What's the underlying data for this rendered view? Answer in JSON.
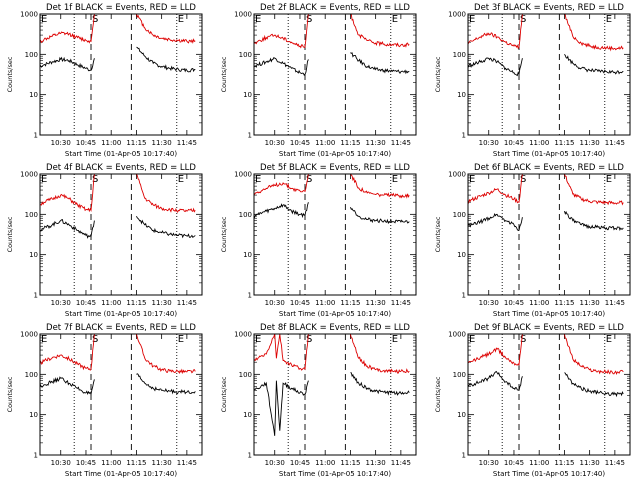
{
  "colors": {
    "events": "#000000",
    "lld": "#dd0000",
    "background": "#ffffff"
  },
  "chart_data": [
    {
      "type": "line",
      "title": "Det 1f BLACK = Events, RED = LLD",
      "xlabel": "Start Time (01-Apr-05 10:17:40)",
      "ylabel": "Counts/sec",
      "yscale": "log",
      "ylim": [
        1,
        1000
      ],
      "yticks": [
        "1",
        "10",
        "100",
        "1000"
      ],
      "xticks": [
        "10:30",
        "10:45",
        "11:00",
        "11:15",
        "11:30",
        "11:45"
      ],
      "markers": {
        "E": "E",
        "S": "S"
      },
      "x": [
        "10:17",
        "10:20",
        "10:25",
        "10:30",
        "10:35",
        "10:40",
        "10:45",
        "10:48",
        "10:50",
        "11:12",
        "11:15",
        "11:20",
        "11:25",
        "11:30",
        "11:35",
        "11:40",
        "11:45",
        "11:50"
      ],
      "series": [
        {
          "name": "Events",
          "values": [
            50,
            55,
            65,
            75,
            70,
            55,
            45,
            40,
            80,
            null,
            150,
            90,
            60,
            50,
            45,
            42,
            40,
            42
          ]
        },
        {
          "name": "LLD",
          "values": [
            200,
            230,
            280,
            330,
            320,
            260,
            220,
            210,
            1000,
            null,
            1000,
            450,
            300,
            250,
            230,
            220,
            210,
            215
          ]
        }
      ]
    },
    {
      "type": "line",
      "title": "Det 2f BLACK = Events, RED = LLD",
      "xlabel": "Start Time (01-Apr-05 10:17:40)",
      "ylabel": "Counts/sec",
      "yscale": "log",
      "ylim": [
        1,
        1000
      ],
      "yticks": [
        "1",
        "10",
        "100",
        "1000"
      ],
      "xticks": [
        "10:30",
        "10:45",
        "11:00",
        "11:15",
        "11:30",
        "11:45"
      ],
      "markers": {
        "E": "E",
        "S": "S"
      },
      "x": [
        "10:17",
        "10:20",
        "10:25",
        "10:30",
        "10:35",
        "10:40",
        "10:45",
        "10:48",
        "10:50",
        "11:12",
        "11:15",
        "11:20",
        "11:25",
        "11:30",
        "11:35",
        "11:40",
        "11:45",
        "11:50"
      ],
      "series": [
        {
          "name": "Events",
          "values": [
            50,
            55,
            65,
            80,
            60,
            45,
            35,
            32,
            75,
            null,
            110,
            70,
            50,
            42,
            40,
            38,
            37,
            38
          ]
        },
        {
          "name": "LLD",
          "values": [
            180,
            210,
            260,
            300,
            250,
            200,
            160,
            150,
            1000,
            null,
            1000,
            300,
            220,
            190,
            180,
            175,
            170,
            175
          ]
        }
      ]
    },
    {
      "type": "line",
      "title": "Det 3f BLACK = Events, RED = LLD",
      "xlabel": "Start Time (01-Apr-05 10:17:40)",
      "ylabel": "Counts/sec",
      "yscale": "log",
      "ylim": [
        1,
        1000
      ],
      "yticks": [
        "1",
        "10",
        "100",
        "1000"
      ],
      "xticks": [
        "10:30",
        "10:45",
        "11:00",
        "11:15",
        "11:30",
        "11:45"
      ],
      "markers": {
        "E": "E",
        "S": "S"
      },
      "x": [
        "10:17",
        "10:20",
        "10:25",
        "10:30",
        "10:35",
        "10:40",
        "10:45",
        "10:48",
        "10:50",
        "11:12",
        "11:15",
        "11:20",
        "11:25",
        "11:30",
        "11:35",
        "11:40",
        "11:45",
        "11:50"
      ],
      "series": [
        {
          "name": "Events",
          "values": [
            50,
            55,
            65,
            80,
            65,
            45,
            35,
            32,
            80,
            null,
            100,
            60,
            45,
            40,
            38,
            37,
            36,
            38
          ]
        },
        {
          "name": "LLD",
          "values": [
            180,
            210,
            270,
            330,
            270,
            200,
            160,
            150,
            1000,
            null,
            1000,
            280,
            190,
            160,
            150,
            145,
            140,
            145
          ]
        }
      ]
    },
    {
      "type": "line",
      "title": "Det 4f BLACK = Events, RED = LLD",
      "xlabel": "Start Time (01-Apr-05 10:17:40)",
      "ylabel": "Counts/sec",
      "yscale": "log",
      "ylim": [
        1,
        1000
      ],
      "yticks": [
        "1",
        "10",
        "100",
        "1000"
      ],
      "xticks": [
        "10:30",
        "10:45",
        "11:00",
        "11:15",
        "11:30",
        "11:45"
      ],
      "markers": {
        "E": "E",
        "S": "S"
      },
      "x": [
        "10:17",
        "10:20",
        "10:25",
        "10:30",
        "10:35",
        "10:40",
        "10:45",
        "10:48",
        "10:50",
        "11:12",
        "11:15",
        "11:20",
        "11:25",
        "11:30",
        "11:35",
        "11:40",
        "11:45",
        "11:50"
      ],
      "series": [
        {
          "name": "Events",
          "values": [
            40,
            45,
            55,
            70,
            55,
            40,
            30,
            28,
            70,
            null,
            90,
            55,
            40,
            35,
            32,
            30,
            29,
            30
          ]
        },
        {
          "name": "LLD",
          "values": [
            170,
            200,
            240,
            300,
            240,
            170,
            130,
            125,
            1000,
            null,
            1000,
            250,
            170,
            140,
            130,
            125,
            120,
            125
          ]
        }
      ]
    },
    {
      "type": "line",
      "title": "Det 5f BLACK = Events, RED = LLD",
      "xlabel": "Start Time (01-Apr-05 10:17:40)",
      "ylabel": "Counts/sec",
      "yscale": "log",
      "ylim": [
        1,
        1000
      ],
      "yticks": [
        "1",
        "10",
        "100",
        "1000"
      ],
      "xticks": [
        "10:30",
        "10:45",
        "11:00",
        "11:15",
        "11:30",
        "11:45"
      ],
      "markers": {
        "E": "E",
        "S": "S"
      },
      "x": [
        "10:17",
        "10:20",
        "10:25",
        "10:30",
        "10:35",
        "10:40",
        "10:45",
        "10:48",
        "10:50",
        "11:12",
        "11:15",
        "11:20",
        "11:25",
        "11:30",
        "11:35",
        "11:40",
        "11:45",
        "11:50"
      ],
      "series": [
        {
          "name": "Events",
          "values": [
            90,
            100,
            120,
            140,
            170,
            120,
            100,
            95,
            200,
            null,
            150,
            90,
            75,
            70,
            68,
            66,
            65,
            66
          ]
        },
        {
          "name": "LLD",
          "values": [
            320,
            360,
            440,
            520,
            600,
            440,
            380,
            370,
            1000,
            null,
            1000,
            450,
            340,
            310,
            300,
            295,
            290,
            295
          ]
        }
      ]
    },
    {
      "type": "line",
      "title": "Det 6f BLACK = Events, RED = LLD",
      "xlabel": "Start Time (01-Apr-05 10:17:40)",
      "ylabel": "Counts/sec",
      "yscale": "log",
      "ylim": [
        1,
        1000
      ],
      "yticks": [
        "1",
        "10",
        "100",
        "1000"
      ],
      "xticks": [
        "10:30",
        "10:45",
        "11:00",
        "11:15",
        "11:30",
        "11:45"
      ],
      "markers": {
        "E": "E",
        "S": "S"
      },
      "x": [
        "10:17",
        "10:20",
        "10:25",
        "10:30",
        "10:35",
        "10:40",
        "10:45",
        "10:48",
        "10:50",
        "11:12",
        "11:15",
        "11:20",
        "11:25",
        "11:30",
        "11:35",
        "11:40",
        "11:45",
        "11:50"
      ],
      "series": [
        {
          "name": "Events",
          "values": [
            50,
            55,
            65,
            80,
            100,
            70,
            55,
            40,
            85,
            null,
            120,
            70,
            55,
            50,
            48,
            46,
            45,
            46
          ]
        },
        {
          "name": "LLD",
          "values": [
            200,
            230,
            280,
            340,
            420,
            300,
            240,
            200,
            1000,
            null,
            1000,
            320,
            240,
            210,
            200,
            195,
            190,
            195
          ]
        }
      ]
    },
    {
      "type": "line",
      "title": "Det 7f BLACK = Events, RED = LLD",
      "xlabel": "Start Time (01-Apr-05 10:17:40)",
      "ylabel": "Counts/sec",
      "yscale": "log",
      "ylim": [
        1,
        1000
      ],
      "yticks": [
        "1",
        "10",
        "100",
        "1000"
      ],
      "xticks": [
        "10:30",
        "10:45",
        "11:00",
        "11:15",
        "11:30",
        "11:45"
      ],
      "markers": {
        "E": "E",
        "S": "S"
      },
      "x": [
        "10:17",
        "10:20",
        "10:25",
        "10:30",
        "10:35",
        "10:40",
        "10:45",
        "10:48",
        "10:50",
        "11:12",
        "11:15",
        "11:20",
        "11:25",
        "11:30",
        "11:35",
        "11:40",
        "11:45",
        "11:50"
      ],
      "series": [
        {
          "name": "Events",
          "values": [
            50,
            55,
            65,
            80,
            60,
            45,
            35,
            32,
            75,
            null,
            100,
            60,
            45,
            40,
            38,
            37,
            36,
            38
          ]
        },
        {
          "name": "LLD",
          "values": [
            180,
            210,
            260,
            300,
            240,
            180,
            140,
            135,
            1000,
            null,
            1000,
            250,
            160,
            130,
            120,
            118,
            115,
            118
          ]
        }
      ]
    },
    {
      "type": "line",
      "title": "Det 8f BLACK = Events, RED = LLD",
      "xlabel": "Start Time (01-Apr-05 10:17:40)",
      "ylabel": "Counts/sec",
      "yscale": "log",
      "ylim": [
        1,
        1000
      ],
      "yticks": [
        "1",
        "10",
        "100",
        "1000"
      ],
      "xticks": [
        "10:30",
        "10:45",
        "11:00",
        "11:15",
        "11:30",
        "11:45"
      ],
      "markers": {
        "E": "E",
        "S": "S"
      },
      "x": [
        "10:17",
        "10:20",
        "10:25",
        "10:30",
        "10:31",
        "10:33",
        "10:35",
        "10:40",
        "10:45",
        "10:48",
        "10:50",
        "11:12",
        "11:15",
        "11:20",
        "11:25",
        "11:30",
        "11:35",
        "11:40",
        "11:45",
        "11:50"
      ],
      "series": [
        {
          "name": "Events",
          "values": [
            40,
            45,
            60,
            3,
            70,
            4,
            60,
            45,
            35,
            32,
            70,
            null,
            110,
            60,
            45,
            38,
            36,
            35,
            34,
            35
          ]
        },
        {
          "name": "LLD",
          "values": [
            200,
            250,
            320,
            1000,
            250,
            1000,
            220,
            170,
            140,
            135,
            1000,
            null,
            1000,
            250,
            160,
            130,
            125,
            120,
            118,
            120
          ]
        }
      ]
    },
    {
      "type": "line",
      "title": "Det 9f BLACK = Events, RED = LLD",
      "xlabel": "Start Time (01-Apr-05 10:17:40)",
      "ylabel": "Counts/sec",
      "yscale": "log",
      "ylim": [
        1,
        1000
      ],
      "yticks": [
        "1",
        "10",
        "100",
        "1000"
      ],
      "xticks": [
        "10:30",
        "10:45",
        "11:00",
        "11:15",
        "11:30",
        "11:45"
      ],
      "markers": {
        "E": "E",
        "S": "S"
      },
      "x": [
        "10:17",
        "10:20",
        "10:25",
        "10:30",
        "10:35",
        "10:40",
        "10:45",
        "10:48",
        "10:50",
        "11:12",
        "11:15",
        "11:20",
        "11:25",
        "11:30",
        "11:35",
        "11:40",
        "11:45",
        "11:50"
      ],
      "series": [
        {
          "name": "Events",
          "values": [
            50,
            55,
            65,
            80,
            110,
            65,
            45,
            40,
            90,
            null,
            110,
            60,
            45,
            38,
            35,
            33,
            32,
            33
          ]
        },
        {
          "name": "LLD",
          "values": [
            180,
            210,
            260,
            320,
            420,
            260,
            190,
            170,
            1000,
            null,
            1000,
            240,
            160,
            130,
            120,
            115,
            112,
            115
          ]
        }
      ]
    }
  ]
}
